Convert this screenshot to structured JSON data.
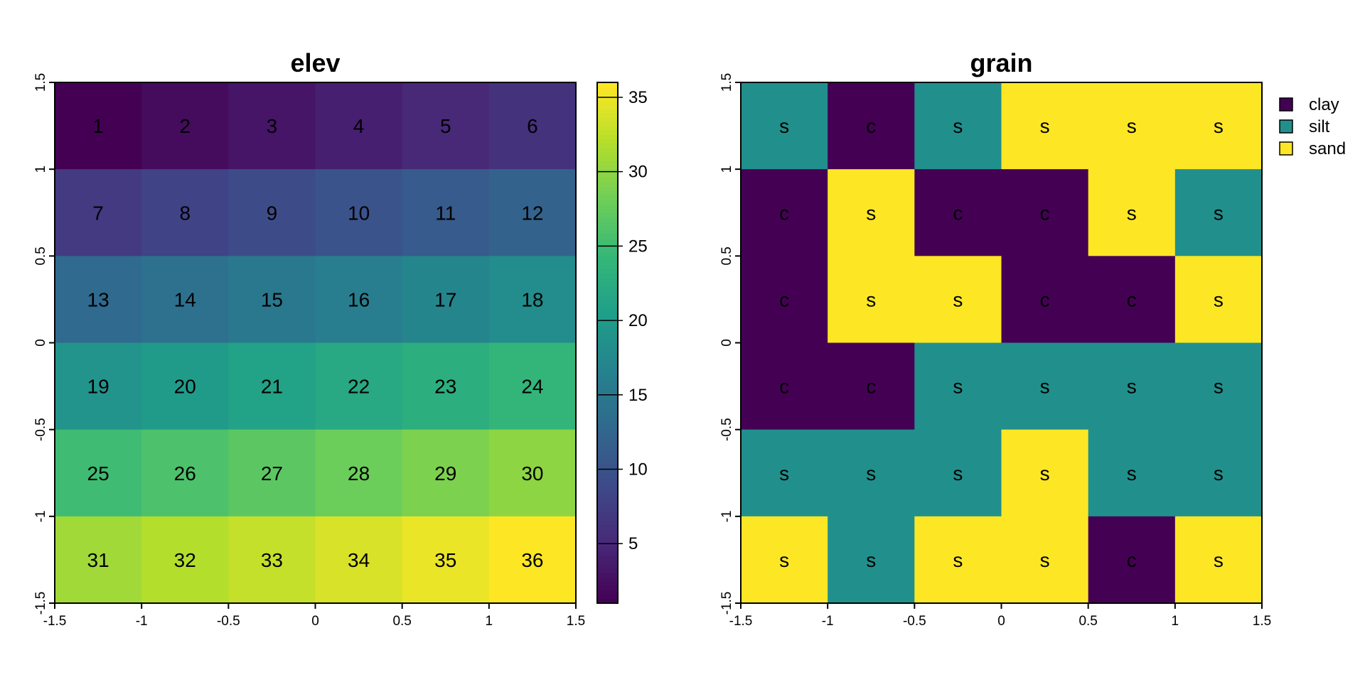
{
  "chart_data": [
    {
      "type": "heatmap",
      "title": "elev",
      "rows": 6,
      "cols": 6,
      "values": [
        [
          1,
          2,
          3,
          4,
          5,
          6
        ],
        [
          7,
          8,
          9,
          10,
          11,
          12
        ],
        [
          13,
          14,
          15,
          16,
          17,
          18
        ],
        [
          19,
          20,
          21,
          22,
          23,
          24
        ],
        [
          25,
          26,
          27,
          28,
          29,
          30
        ],
        [
          31,
          32,
          33,
          34,
          35,
          36
        ]
      ],
      "cell_labels": [
        [
          "1",
          "2",
          "3",
          "4",
          "5",
          "6"
        ],
        [
          "7",
          "8",
          "9",
          "10",
          "11",
          "12"
        ],
        [
          "13",
          "14",
          "15",
          "16",
          "17",
          "18"
        ],
        [
          "19",
          "20",
          "21",
          "22",
          "23",
          "24"
        ],
        [
          "25",
          "26",
          "27",
          "28",
          "29",
          "30"
        ],
        [
          "31",
          "32",
          "33",
          "34",
          "35",
          "36"
        ]
      ],
      "xlim": [
        -1.5,
        1.5
      ],
      "ylim": [
        -1.5,
        1.5
      ],
      "x_ticks": [
        "-1.5",
        "-1",
        "-0.5",
        "0",
        "0.5",
        "1",
        "1.5"
      ],
      "y_ticks": [
        "-1.5",
        "-1",
        "-0.5",
        "0",
        "0.5",
        "1",
        "1.5"
      ],
      "colormap": "viridis",
      "colorbar": {
        "range": [
          1,
          36
        ],
        "ticks": [
          5,
          10,
          15,
          20,
          25,
          30,
          35
        ],
        "tick_labels": [
          "5",
          "10",
          "15",
          "20",
          "25",
          "30",
          "35"
        ]
      },
      "grid": false
    },
    {
      "type": "heatmap",
      "title": "grain",
      "rows": 6,
      "cols": 6,
      "categories": [
        {
          "code": "c",
          "name": "clay",
          "color": "#440154"
        },
        {
          "code": "s",
          "name": "silt",
          "color": "#21908C"
        },
        {
          "code": "s",
          "name": "sand",
          "color": "#FDE725"
        }
      ],
      "classes": [
        [
          1,
          0,
          1,
          2,
          2,
          2
        ],
        [
          0,
          2,
          0,
          0,
          2,
          1
        ],
        [
          0,
          2,
          2,
          0,
          0,
          2
        ],
        [
          0,
          0,
          1,
          1,
          1,
          1
        ],
        [
          1,
          1,
          1,
          2,
          1,
          1
        ],
        [
          2,
          1,
          2,
          2,
          0,
          2
        ]
      ],
      "cell_labels": [
        [
          "s",
          "c",
          "s",
          "s",
          "s",
          "s"
        ],
        [
          "c",
          "s",
          "c",
          "c",
          "s",
          "s"
        ],
        [
          "c",
          "s",
          "s",
          "c",
          "c",
          "s"
        ],
        [
          "c",
          "c",
          "s",
          "s",
          "s",
          "s"
        ],
        [
          "s",
          "s",
          "s",
          "s",
          "s",
          "s"
        ],
        [
          "s",
          "s",
          "s",
          "s",
          "c",
          "s"
        ]
      ],
      "xlim": [
        -1.5,
        1.5
      ],
      "ylim": [
        -1.5,
        1.5
      ],
      "x_ticks": [
        "-1.5",
        "-1",
        "-0.5",
        "0",
        "0.5",
        "1",
        "1.5"
      ],
      "y_ticks": [
        "-1.5",
        "-1",
        "-0.5",
        "0",
        "0.5",
        "1",
        "1.5"
      ],
      "legend": {
        "position": "top-right",
        "entries": [
          "clay",
          "silt",
          "sand"
        ]
      },
      "grid": false
    }
  ]
}
